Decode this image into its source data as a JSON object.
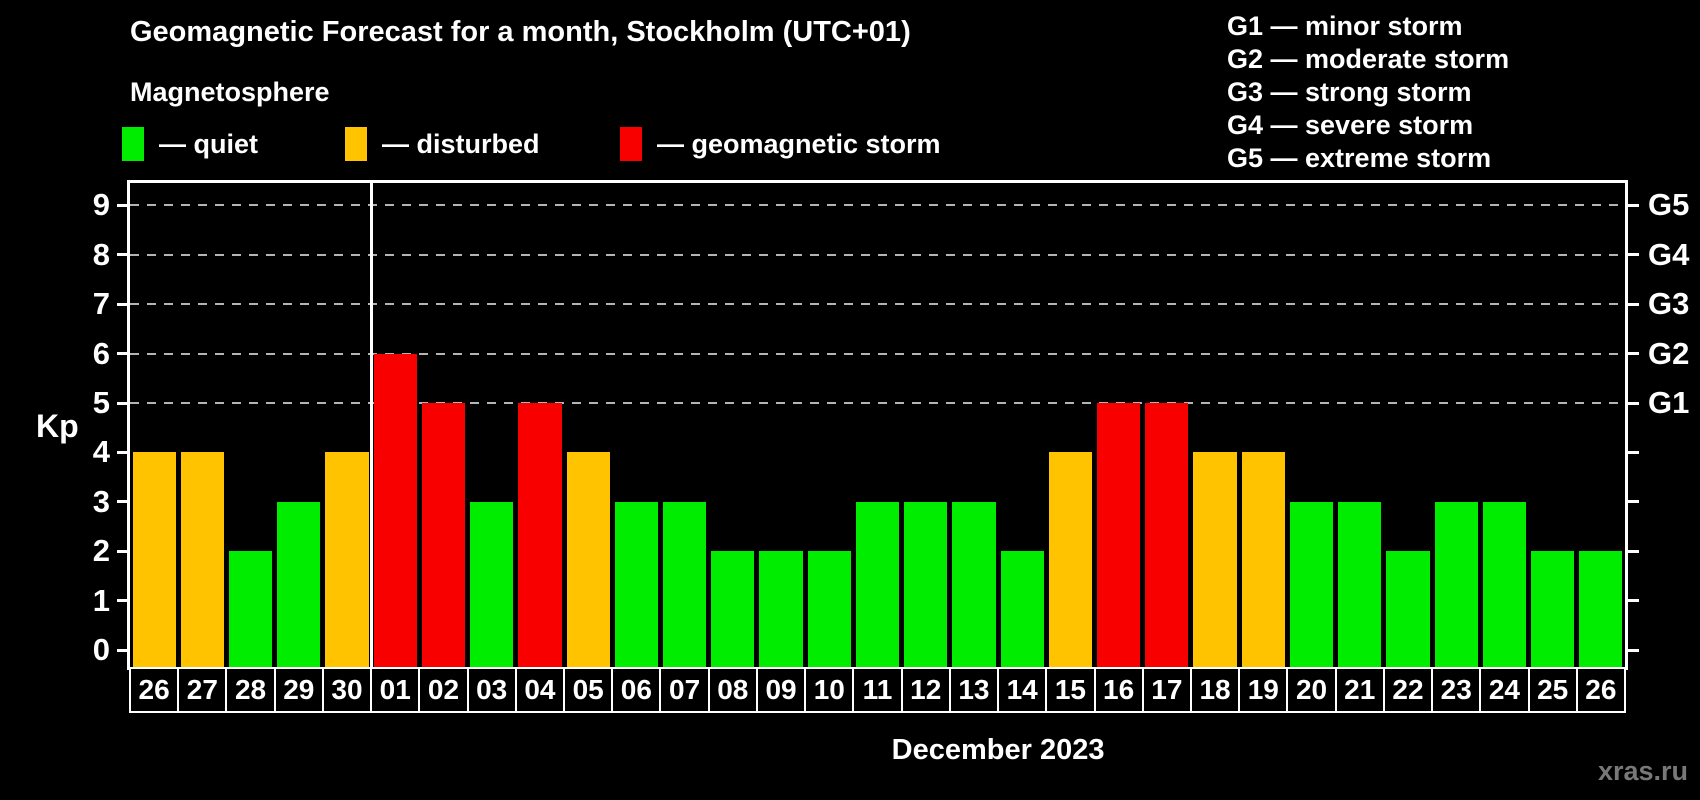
{
  "title": "Geomagnetic Forecast for a month, Stockholm (UTC+01)",
  "subtitle": "Magnetosphere",
  "legend": {
    "items": [
      {
        "key": "quiet",
        "label": "— quiet",
        "color": "#00ed00"
      },
      {
        "key": "disturbed",
        "label": "— disturbed",
        "color": "#ffc300"
      },
      {
        "key": "storm",
        "label": "— geomagnetic storm",
        "color": "#f80000"
      }
    ]
  },
  "g_scale_legend": {
    "items": [
      "G1 — minor storm",
      "G2 — moderate storm",
      "G3 — strong storm",
      "G4 — severe storm",
      "G5 — extreme storm"
    ]
  },
  "watermark": "xras.ru",
  "chart_data": {
    "type": "bar",
    "title": "Geomagnetic Forecast for a month, Stockholm (UTC+01)",
    "subtitle": "Magnetosphere",
    "xlabel": "December 2023",
    "ylabel": "Kp",
    "ylim": [
      0,
      9
    ],
    "y_ticks": [
      0,
      1,
      2,
      3,
      4,
      5,
      6,
      7,
      8,
      9
    ],
    "grid": "dashed horizontal gridlines at Kp 5-9 (G1-G5 levels)",
    "legend_position": "top-left",
    "right_axis_labels": [
      {
        "kp": 5,
        "label": "G1"
      },
      {
        "kp": 6,
        "label": "G2"
      },
      {
        "kp": 7,
        "label": "G3"
      },
      {
        "kp": 8,
        "label": "G4"
      },
      {
        "kp": 9,
        "label": "G5"
      }
    ],
    "month_divider_after_index": 4,
    "categories": [
      "26",
      "27",
      "28",
      "29",
      "30",
      "01",
      "02",
      "03",
      "04",
      "05",
      "06",
      "07",
      "08",
      "09",
      "10",
      "11",
      "12",
      "13",
      "14",
      "15",
      "16",
      "17",
      "18",
      "19",
      "20",
      "21",
      "22",
      "23",
      "24",
      "25",
      "26"
    ],
    "values": [
      4,
      4,
      2,
      3,
      4,
      6,
      5,
      3,
      5,
      4,
      3,
      3,
      2,
      2,
      2,
      3,
      3,
      3,
      2,
      4,
      5,
      5,
      4,
      4,
      3,
      3,
      2,
      3,
      3,
      2,
      2
    ],
    "statuses": [
      "disturbed",
      "disturbed",
      "quiet",
      "quiet",
      "disturbed",
      "storm",
      "storm",
      "quiet",
      "storm",
      "disturbed",
      "quiet",
      "quiet",
      "quiet",
      "quiet",
      "quiet",
      "quiet",
      "quiet",
      "quiet",
      "quiet",
      "disturbed",
      "storm",
      "storm",
      "disturbed",
      "disturbed",
      "quiet",
      "quiet",
      "quiet",
      "quiet",
      "quiet",
      "quiet",
      "quiet"
    ]
  }
}
